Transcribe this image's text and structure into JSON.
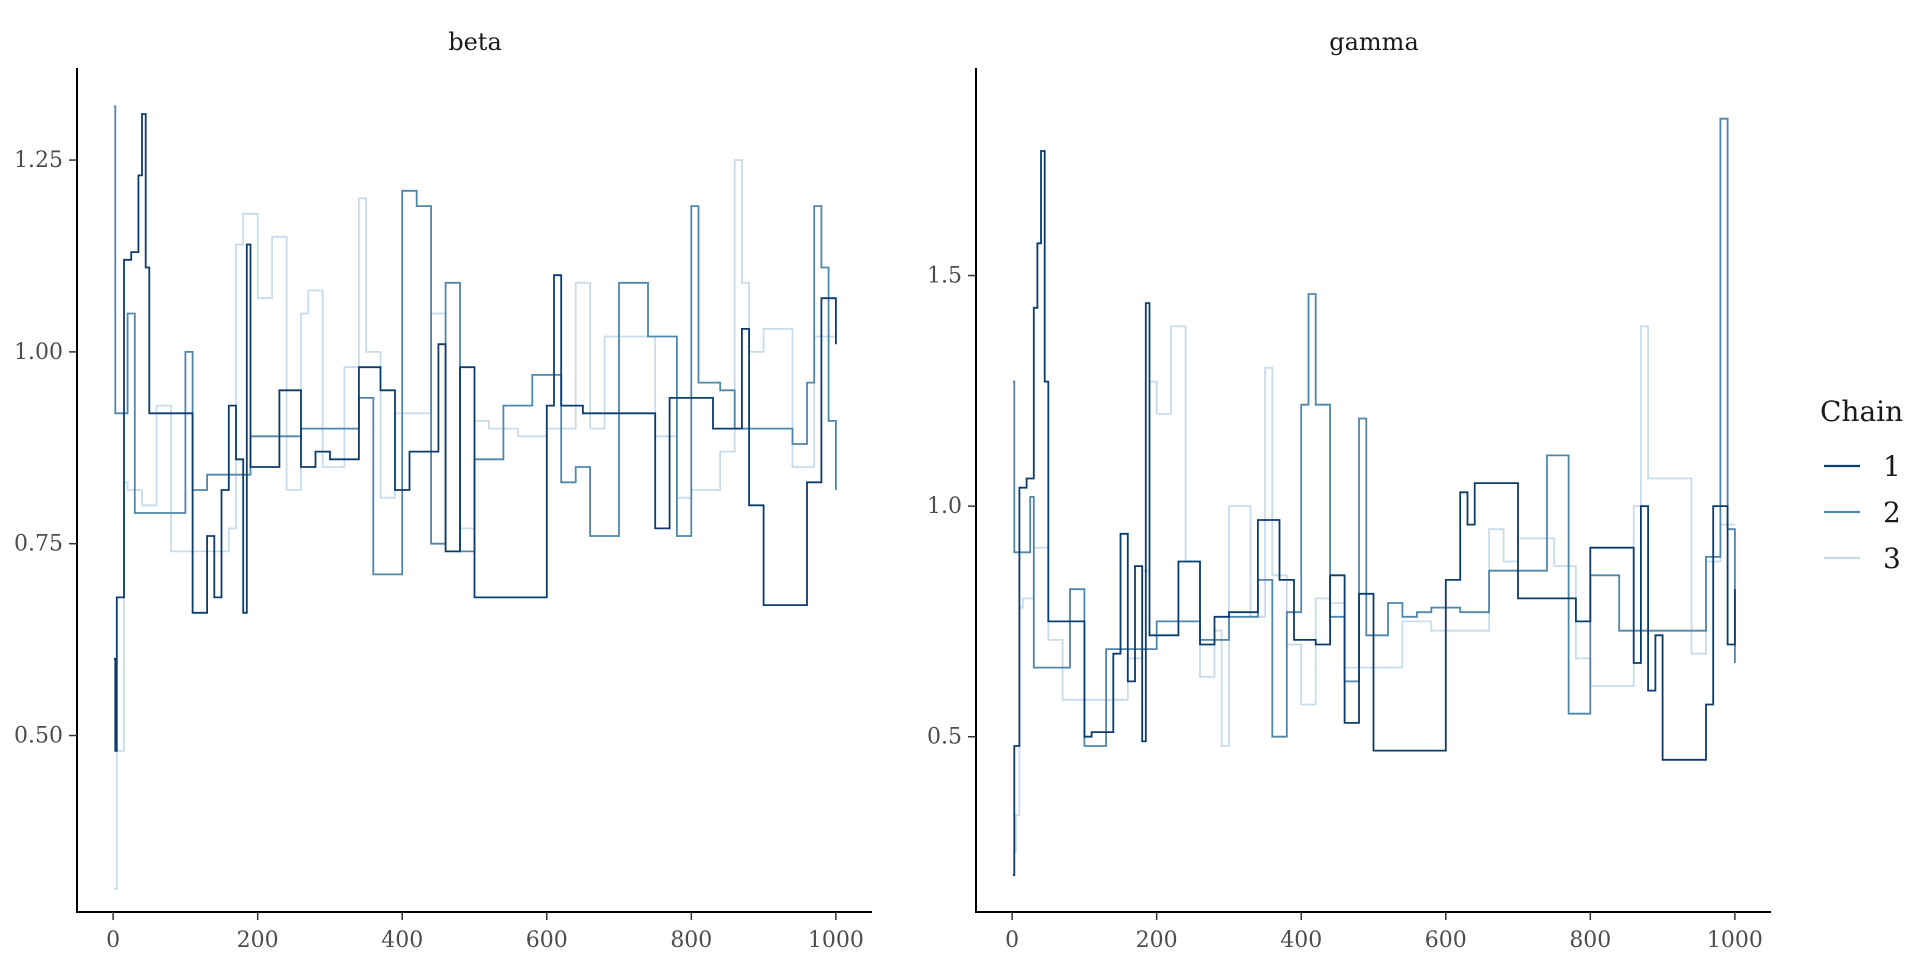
{
  "chart_data": [
    {
      "type": "line",
      "title": "beta",
      "xlabel": "",
      "ylabel": "",
      "xlim": [
        -50,
        1050
      ],
      "ylim": [
        0.27,
        1.37
      ],
      "xticks": [
        0,
        200,
        400,
        600,
        800,
        1000
      ],
      "xtick_labels": [
        "0",
        "200",
        "400",
        "600",
        "800",
        "1000"
      ],
      "yticks": [
        0.5,
        0.75,
        1.0,
        1.25
      ],
      "ytick_labels": [
        "0.50",
        "0.75",
        "1.00",
        "1.25"
      ],
      "grid": false,
      "series": [
        {
          "name": "1",
          "color": "#0b3c6e",
          "x": [
            1,
            3,
            5,
            15,
            25,
            35,
            40,
            45,
            50,
            60,
            110,
            130,
            140,
            150,
            160,
            170,
            180,
            185,
            190,
            200,
            230,
            260,
            280,
            300,
            340,
            370,
            390,
            410,
            430,
            450,
            460,
            480,
            500,
            570,
            600,
            610,
            620,
            650,
            700,
            750,
            770,
            800,
            830,
            870,
            880,
            900,
            940,
            960,
            980,
            1000
          ],
          "y": [
            0.6,
            0.48,
            0.68,
            1.12,
            1.13,
            1.23,
            1.31,
            1.11,
            0.92,
            0.92,
            0.66,
            0.76,
            0.68,
            0.82,
            0.93,
            0.86,
            0.66,
            1.14,
            0.85,
            0.85,
            0.95,
            0.85,
            0.87,
            0.86,
            0.98,
            0.95,
            0.82,
            0.87,
            0.87,
            1.01,
            0.74,
            0.98,
            0.68,
            0.68,
            0.93,
            1.1,
            0.93,
            0.92,
            0.92,
            0.77,
            0.94,
            0.94,
            0.9,
            1.03,
            0.8,
            0.67,
            0.67,
            0.83,
            1.07,
            1.01
          ]
        },
        {
          "name": "2",
          "color": "#4f86ab",
          "x": [
            1,
            3,
            5,
            20,
            30,
            60,
            100,
            110,
            130,
            160,
            190,
            210,
            260,
            300,
            340,
            360,
            400,
            420,
            440,
            460,
            480,
            500,
            540,
            580,
            620,
            640,
            660,
            700,
            740,
            780,
            800,
            810,
            840,
            860,
            900,
            940,
            960,
            970,
            980,
            990,
            1000
          ],
          "y": [
            1.32,
            0.92,
            0.92,
            1.05,
            0.79,
            0.79,
            1.0,
            0.82,
            0.84,
            0.84,
            0.89,
            0.89,
            0.9,
            0.9,
            0.94,
            0.71,
            1.21,
            1.19,
            0.75,
            1.09,
            0.74,
            0.86,
            0.93,
            0.97,
            0.83,
            0.85,
            0.76,
            1.09,
            1.02,
            0.76,
            1.19,
            0.96,
            0.95,
            0.9,
            0.9,
            0.88,
            0.96,
            1.19,
            1.11,
            0.91,
            0.82
          ]
        },
        {
          "name": "3",
          "color": "#c9dcea",
          "x": [
            1,
            5,
            15,
            20,
            40,
            60,
            80,
            100,
            120,
            140,
            160,
            170,
            180,
            200,
            220,
            240,
            260,
            270,
            290,
            320,
            340,
            350,
            370,
            390,
            420,
            440,
            460,
            480,
            500,
            520,
            560,
            600,
            640,
            660,
            680,
            700,
            750,
            780,
            800,
            840,
            860,
            870,
            880,
            900,
            940,
            970,
            1000
          ],
          "y": [
            0.3,
            0.48,
            0.83,
            0.82,
            0.8,
            0.93,
            0.74,
            0.74,
            0.74,
            0.74,
            0.77,
            1.14,
            1.18,
            1.07,
            1.15,
            0.82,
            1.05,
            1.08,
            0.85,
            0.98,
            1.2,
            1.0,
            0.81,
            0.92,
            0.92,
            1.05,
            0.74,
            0.77,
            0.91,
            0.9,
            0.89,
            0.9,
            1.09,
            0.9,
            1.02,
            1.02,
            0.89,
            0.81,
            0.82,
            0.87,
            1.25,
            1.09,
            1.0,
            1.03,
            0.85,
            1.02,
            1.02
          ]
        }
      ]
    },
    {
      "type": "line",
      "title": "gamma",
      "xlabel": "",
      "ylabel": "",
      "xlim": [
        -50,
        1050
      ],
      "ylim": [
        0.12,
        1.95
      ],
      "xticks": [
        0,
        200,
        400,
        600,
        800,
        1000
      ],
      "xtick_labels": [
        "0",
        "200",
        "400",
        "600",
        "800",
        "1000"
      ],
      "yticks": [
        0.5,
        1.0,
        1.5
      ],
      "ytick_labels": [
        "0.5",
        "1.0",
        "1.5"
      ],
      "grid": false,
      "series": [
        {
          "name": "1",
          "color": "#0b3c6e",
          "x": [
            1,
            3,
            10,
            20,
            30,
            35,
            40,
            45,
            50,
            60,
            100,
            110,
            140,
            150,
            160,
            170,
            180,
            185,
            190,
            200,
            230,
            260,
            280,
            300,
            340,
            370,
            390,
            420,
            440,
            460,
            480,
            500,
            570,
            600,
            620,
            630,
            640,
            700,
            740,
            780,
            800,
            850,
            860,
            870,
            880,
            890,
            900,
            930,
            960,
            970,
            990,
            1000
          ],
          "y": [
            0.2,
            0.48,
            1.04,
            1.06,
            1.43,
            1.57,
            1.77,
            1.27,
            0.75,
            0.75,
            0.5,
            0.51,
            0.68,
            0.94,
            0.62,
            0.87,
            0.49,
            1.44,
            0.72,
            0.72,
            0.88,
            0.7,
            0.76,
            0.77,
            0.97,
            0.84,
            0.71,
            0.7,
            0.85,
            0.53,
            0.81,
            0.47,
            0.47,
            0.84,
            1.03,
            0.96,
            1.05,
            0.8,
            0.8,
            0.75,
            0.91,
            0.91,
            0.66,
            1.0,
            0.6,
            0.72,
            0.45,
            0.45,
            0.57,
            1.0,
            0.7,
            0.82
          ]
        },
        {
          "name": "2",
          "color": "#4f86ab",
          "x": [
            1,
            3,
            10,
            25,
            30,
            60,
            80,
            100,
            130,
            160,
            200,
            230,
            260,
            300,
            340,
            360,
            380,
            400,
            410,
            420,
            440,
            460,
            480,
            490,
            520,
            540,
            560,
            580,
            620,
            660,
            700,
            740,
            770,
            800,
            840,
            880,
            940,
            960,
            980,
            990,
            1000
          ],
          "y": [
            1.27,
            0.9,
            0.9,
            1.02,
            0.65,
            0.65,
            0.82,
            0.48,
            0.69,
            0.69,
            0.75,
            0.75,
            0.71,
            0.76,
            0.84,
            0.5,
            0.77,
            1.22,
            1.46,
            1.22,
            0.76,
            0.62,
            1.19,
            0.72,
            0.79,
            0.76,
            0.77,
            0.78,
            0.77,
            0.86,
            0.86,
            1.11,
            0.55,
            0.85,
            0.73,
            0.73,
            0.73,
            0.89,
            1.84,
            0.95,
            0.66
          ]
        },
        {
          "name": "3",
          "color": "#c9dcea",
          "x": [
            1,
            5,
            10,
            15,
            30,
            50,
            70,
            100,
            130,
            160,
            180,
            190,
            200,
            220,
            240,
            260,
            280,
            290,
            300,
            330,
            350,
            360,
            380,
            400,
            420,
            440,
            460,
            500,
            540,
            580,
            620,
            660,
            680,
            700,
            750,
            780,
            800,
            840,
            860,
            870,
            880,
            900,
            940,
            960,
            980,
            1000
          ],
          "y": [
            0.25,
            0.33,
            0.78,
            0.8,
            0.91,
            0.71,
            0.58,
            0.58,
            0.58,
            0.67,
            0.86,
            1.27,
            1.2,
            1.39,
            0.88,
            0.63,
            0.73,
            0.48,
            1.0,
            0.76,
            1.3,
            0.85,
            0.7,
            0.57,
            0.8,
            0.79,
            0.65,
            0.65,
            0.75,
            0.73,
            0.73,
            0.95,
            0.88,
            0.93,
            0.87,
            0.67,
            0.61,
            0.61,
            1.0,
            1.39,
            1.06,
            1.06,
            0.68,
            0.88,
            0.96,
            0.96
          ]
        }
      ]
    }
  ],
  "legend": {
    "title": "Chain",
    "items": [
      {
        "label": "1",
        "color": "#0b3c6e"
      },
      {
        "label": "2",
        "color": "#4f86ab"
      },
      {
        "label": "3",
        "color": "#c9dcea"
      }
    ]
  }
}
